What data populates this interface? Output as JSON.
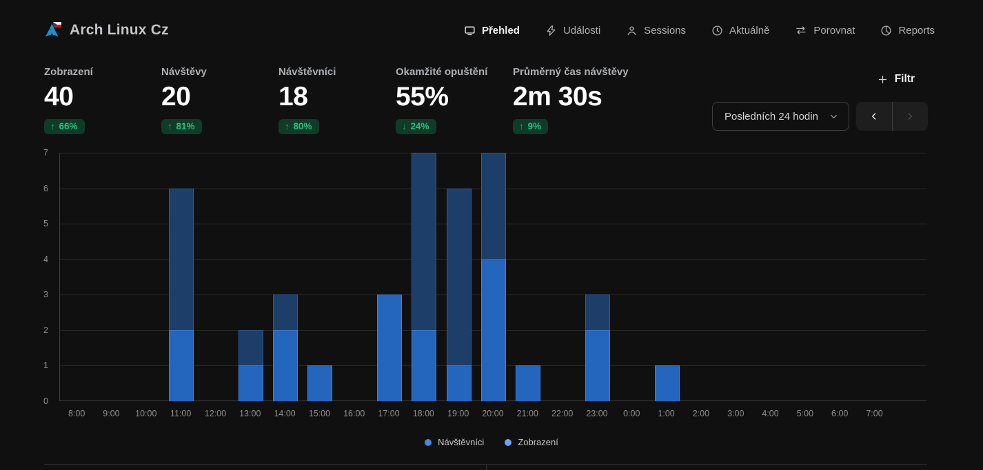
{
  "header": {
    "site_title": "Arch Linux Cz",
    "nav": [
      {
        "id": "overview",
        "label": "Přehled",
        "icon": "monitor-icon",
        "active": true
      },
      {
        "id": "events",
        "label": "Události",
        "icon": "lightning-icon",
        "active": false
      },
      {
        "id": "sessions",
        "label": "Sessions",
        "icon": "user-icon",
        "active": false
      },
      {
        "id": "realtime",
        "label": "Aktuálně",
        "icon": "clock-icon",
        "active": false
      },
      {
        "id": "compare",
        "label": "Porovnat",
        "icon": "compare-arrows-icon",
        "active": false
      },
      {
        "id": "reports",
        "label": "Reports",
        "icon": "pie-chart-icon",
        "active": false
      }
    ]
  },
  "metrics": [
    {
      "id": "views",
      "label": "Zobrazení",
      "value": "40",
      "change": "66%",
      "direction": "up"
    },
    {
      "id": "visits",
      "label": "Návštěvy",
      "value": "20",
      "change": "81%",
      "direction": "up"
    },
    {
      "id": "visitors",
      "label": "Návštěvníci",
      "value": "18",
      "change": "80%",
      "direction": "up"
    },
    {
      "id": "bounce-rate",
      "label": "Okamžité opuštění",
      "value": "55%",
      "change": "24%",
      "direction": "down"
    },
    {
      "id": "avg-visit-time",
      "label": "Průměrný čas návštěvy",
      "value": "2m 30s",
      "change": "9%",
      "direction": "up"
    }
  ],
  "badge_colors": {
    "background": "#0e3c28",
    "text": "#2fbe7e"
  },
  "controls": {
    "filter_label": "Filtr",
    "date_range_value": "Posledních 24 hodin"
  },
  "chart_data": {
    "type": "bar",
    "title": "",
    "xlabel": "",
    "ylabel": "",
    "categories": [
      "8:00",
      "9:00",
      "10:00",
      "11:00",
      "12:00",
      "13:00",
      "14:00",
      "15:00",
      "16:00",
      "17:00",
      "18:00",
      "19:00",
      "20:00",
      "21:00",
      "22:00",
      "23:00",
      "0:00",
      "1:00",
      "2:00",
      "3:00",
      "4:00",
      "5:00",
      "6:00",
      "7:00"
    ],
    "series": [
      {
        "name": "Návštěvníci",
        "role": "visitors",
        "dot_color": "#4d87da",
        "bar_fill": "#2465bd",
        "bar_border": "#3f82dc",
        "values": [
          0,
          0,
          0,
          2,
          0,
          1,
          2,
          1,
          0,
          3,
          2,
          1,
          4,
          1,
          0,
          2,
          0,
          1,
          0,
          0,
          0,
          0,
          0,
          0
        ]
      },
      {
        "name": "Zobrazení",
        "role": "views",
        "dot_color": "#6ba3f0",
        "bar_fill": "#1c3e68",
        "bar_border": "#2e5f9e",
        "values": [
          0,
          0,
          0,
          6,
          0,
          2,
          3,
          1,
          0,
          3,
          7,
          6,
          7,
          1,
          0,
          3,
          0,
          1,
          0,
          0,
          0,
          0,
          0,
          0
        ]
      }
    ],
    "ylim": [
      0,
      7
    ],
    "yticks": [
      0,
      1,
      2,
      3,
      4,
      5,
      6,
      7
    ],
    "grid": true,
    "legend_position": "bottom",
    "layout_slots": 25
  }
}
